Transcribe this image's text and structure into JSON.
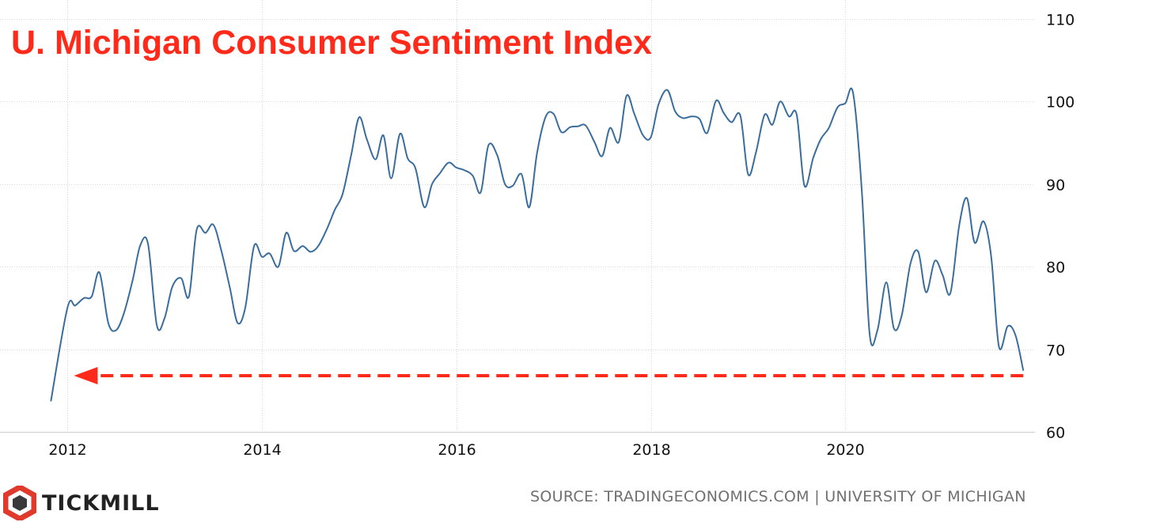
{
  "title": "U. Michigan Consumer Sentiment Index",
  "source": "SOURCE: TRADINGECONOMICS.COM | UNIVERSITY OF MICHIGAN",
  "brand": {
    "name": "TICKMILL",
    "icon": "tickmill-hexagon-logo"
  },
  "colors": {
    "line": "#3a6d9c",
    "title": "#ff2a1a",
    "annotation": "#ff2a1a",
    "grid": "#d8d8d8",
    "brand": "#e03a2c"
  },
  "chart_data": {
    "type": "line",
    "title": "U. Michigan Consumer Sentiment Index",
    "xlabel": "",
    "ylabel": "",
    "x_ticks": [
      "2012",
      "2014",
      "2016",
      "2018",
      "2020"
    ],
    "x_tick_values": [
      2012,
      2014,
      2016,
      2018,
      2020
    ],
    "y_ticks": [
      60,
      70,
      80,
      90,
      100,
      110
    ],
    "xlim": [
      2011.6,
      2021.95
    ],
    "ylim": [
      60,
      110
    ],
    "grid": true,
    "y_axis_side": "right",
    "series": [
      {
        "name": "Consumer Sentiment",
        "points": [
          [
            2011.83,
            63.7
          ],
          [
            2012.0,
            75.0
          ],
          [
            2012.08,
            75.3
          ],
          [
            2012.17,
            76.2
          ],
          [
            2012.25,
            76.4
          ],
          [
            2012.33,
            79.3
          ],
          [
            2012.42,
            73.2
          ],
          [
            2012.5,
            72.3
          ],
          [
            2012.58,
            74.3
          ],
          [
            2012.67,
            78.3
          ],
          [
            2012.75,
            82.6
          ],
          [
            2012.83,
            82.7
          ],
          [
            2012.92,
            72.9
          ],
          [
            2013.0,
            73.8
          ],
          [
            2013.08,
            77.6
          ],
          [
            2013.17,
            78.6
          ],
          [
            2013.25,
            76.4
          ],
          [
            2013.33,
            84.5
          ],
          [
            2013.42,
            84.1
          ],
          [
            2013.5,
            85.1
          ],
          [
            2013.58,
            82.1
          ],
          [
            2013.67,
            77.5
          ],
          [
            2013.75,
            73.2
          ],
          [
            2013.83,
            75.1
          ],
          [
            2013.92,
            82.5
          ],
          [
            2014.0,
            81.2
          ],
          [
            2014.08,
            81.6
          ],
          [
            2014.17,
            80.0
          ],
          [
            2014.25,
            84.1
          ],
          [
            2014.33,
            81.9
          ],
          [
            2014.42,
            82.5
          ],
          [
            2014.5,
            81.8
          ],
          [
            2014.58,
            82.5
          ],
          [
            2014.67,
            84.6
          ],
          [
            2014.75,
            86.9
          ],
          [
            2014.83,
            88.8
          ],
          [
            2014.92,
            93.6
          ],
          [
            2015.0,
            98.1
          ],
          [
            2015.08,
            95.4
          ],
          [
            2015.17,
            93.0
          ],
          [
            2015.25,
            95.9
          ],
          [
            2015.33,
            90.7
          ],
          [
            2015.42,
            96.1
          ],
          [
            2015.5,
            93.1
          ],
          [
            2015.58,
            91.9
          ],
          [
            2015.67,
            87.2
          ],
          [
            2015.75,
            90.0
          ],
          [
            2015.83,
            91.3
          ],
          [
            2015.92,
            92.6
          ],
          [
            2016.0,
            92.0
          ],
          [
            2016.08,
            91.7
          ],
          [
            2016.17,
            91.0
          ],
          [
            2016.25,
            89.0
          ],
          [
            2016.33,
            94.7
          ],
          [
            2016.42,
            93.5
          ],
          [
            2016.5,
            90.0
          ],
          [
            2016.58,
            89.8
          ],
          [
            2016.67,
            91.2
          ],
          [
            2016.75,
            87.2
          ],
          [
            2016.83,
            93.8
          ],
          [
            2016.92,
            98.2
          ],
          [
            2017.0,
            98.5
          ],
          [
            2017.08,
            96.3
          ],
          [
            2017.17,
            96.9
          ],
          [
            2017.25,
            97.0
          ],
          [
            2017.33,
            97.1
          ],
          [
            2017.42,
            95.1
          ],
          [
            2017.5,
            93.4
          ],
          [
            2017.58,
            96.8
          ],
          [
            2017.67,
            95.1
          ],
          [
            2017.75,
            100.7
          ],
          [
            2017.83,
            98.5
          ],
          [
            2017.92,
            95.9
          ],
          [
            2018.0,
            95.7
          ],
          [
            2018.08,
            99.7
          ],
          [
            2018.17,
            101.4
          ],
          [
            2018.25,
            98.8
          ],
          [
            2018.33,
            98.0
          ],
          [
            2018.42,
            98.2
          ],
          [
            2018.5,
            97.9
          ],
          [
            2018.58,
            96.2
          ],
          [
            2018.67,
            100.1
          ],
          [
            2018.75,
            98.6
          ],
          [
            2018.83,
            97.5
          ],
          [
            2018.92,
            98.3
          ],
          [
            2019.0,
            91.2
          ],
          [
            2019.08,
            93.8
          ],
          [
            2019.17,
            98.4
          ],
          [
            2019.25,
            97.2
          ],
          [
            2019.33,
            100.0
          ],
          [
            2019.42,
            98.2
          ],
          [
            2019.5,
            98.4
          ],
          [
            2019.58,
            89.8
          ],
          [
            2019.67,
            93.2
          ],
          [
            2019.75,
            95.5
          ],
          [
            2019.83,
            96.8
          ],
          [
            2019.92,
            99.3
          ],
          [
            2020.0,
            99.8
          ],
          [
            2020.08,
            101.0
          ],
          [
            2020.17,
            89.1
          ],
          [
            2020.25,
            71.8
          ],
          [
            2020.33,
            72.3
          ],
          [
            2020.42,
            78.1
          ],
          [
            2020.5,
            72.5
          ],
          [
            2020.58,
            74.1
          ],
          [
            2020.67,
            80.4
          ],
          [
            2020.75,
            81.8
          ],
          [
            2020.83,
            76.9
          ],
          [
            2020.92,
            80.7
          ],
          [
            2021.0,
            79.0
          ],
          [
            2021.08,
            76.8
          ],
          [
            2021.17,
            84.9
          ],
          [
            2021.25,
            88.3
          ],
          [
            2021.33,
            82.9
          ],
          [
            2021.42,
            85.5
          ],
          [
            2021.5,
            81.2
          ],
          [
            2021.58,
            70.3
          ],
          [
            2021.67,
            72.8
          ],
          [
            2021.75,
            71.7
          ],
          [
            2021.83,
            67.4
          ]
        ]
      }
    ],
    "annotations": [
      {
        "type": "dashed-arrow",
        "y": 66.8,
        "x_from": 2021.83,
        "x_to": 2012.1,
        "direction": "left"
      }
    ]
  }
}
